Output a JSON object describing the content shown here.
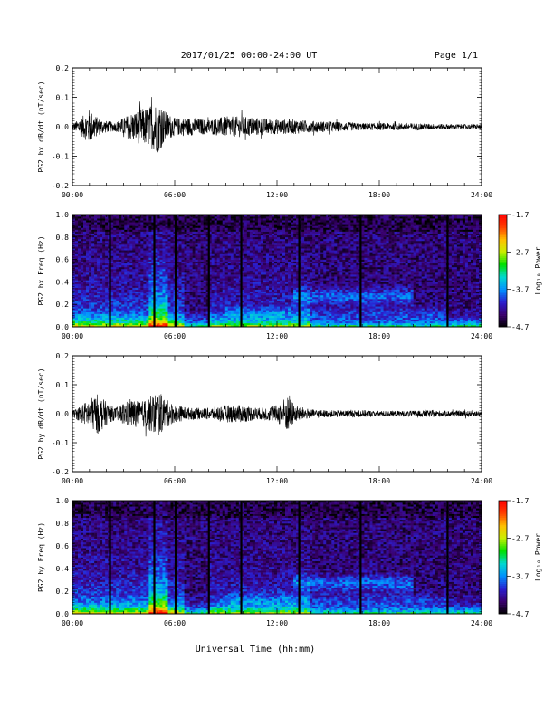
{
  "header": {
    "title": "2017/01/25  00:00-24:00 UT",
    "page": "Page 1/1"
  },
  "footer": {
    "xlabel": "Universal Time (hh:mm)"
  },
  "colorbar": {
    "label": "Log₁₀ Power",
    "ticks": [
      "-1.7",
      "-2.7",
      "-3.7",
      "-4.7"
    ],
    "colors": [
      "#000000",
      "#3a0070",
      "#2a1fd0",
      "#0090ff",
      "#00d8d0",
      "#00e000",
      "#c8f000",
      "#ffc000",
      "#ff4000",
      "#ff0000"
    ]
  },
  "chart_data": [
    {
      "type": "line",
      "ylabel": "PG2 bx dB/dt (nT/sec)",
      "xlim": [
        0,
        24
      ],
      "ylim": [
        -0.2,
        0.2
      ],
      "x_ticks": [
        "00:00",
        "06:00",
        "12:00",
        "18:00",
        "24:00"
      ],
      "y_ticks": [
        "-0.2",
        "-0.1",
        "0.0",
        "0.1",
        "0.2"
      ],
      "series": [
        {
          "envelope": [
            [
              0,
              0.01
            ],
            [
              0.5,
              0.03
            ],
            [
              1,
              0.06
            ],
            [
              1.5,
              0.03
            ],
            [
              2,
              0.02
            ],
            [
              2.5,
              0.015
            ],
            [
              3,
              0.03
            ],
            [
              3.5,
              0.05
            ],
            [
              4,
              0.06
            ],
            [
              4.5,
              0.07
            ],
            [
              5,
              0.09
            ],
            [
              5.5,
              0.05
            ],
            [
              6,
              0.03
            ],
            [
              7,
              0.03
            ],
            [
              8,
              0.025
            ],
            [
              9,
              0.035
            ],
            [
              10,
              0.035
            ],
            [
              11,
              0.03
            ],
            [
              12,
              0.025
            ],
            [
              13,
              0.025
            ],
            [
              14,
              0.02
            ],
            [
              15,
              0.018
            ],
            [
              16,
              0.015
            ],
            [
              17,
              0.012
            ],
            [
              18,
              0.012
            ],
            [
              19,
              0.012
            ],
            [
              20,
              0.012
            ],
            [
              21,
              0.01
            ],
            [
              22,
              0.009
            ],
            [
              24,
              0.008
            ]
          ]
        }
      ]
    },
    {
      "type": "heatmap",
      "ylabel": "PG2 bx Freq (Hz)",
      "xlim": [
        0,
        24
      ],
      "ylim": [
        0,
        1
      ],
      "zlim": [
        -4.7,
        -1.7
      ],
      "x_ticks": [
        "00:00",
        "06:00",
        "12:00",
        "18:00",
        "24:00"
      ],
      "y_ticks": [
        "0.0",
        "0.2",
        "0.4",
        "0.6",
        "0.8",
        "1.0"
      ],
      "gaps": [
        2.2,
        4.8,
        6.05,
        8.0,
        9.9,
        13.3,
        16.9,
        22.0
      ]
    },
    {
      "type": "line",
      "ylabel": "PG2 by dB/dt (nT/sec)",
      "xlim": [
        0,
        24
      ],
      "ylim": [
        -0.2,
        0.2
      ],
      "x_ticks": [
        "00:00",
        "06:00",
        "12:00",
        "18:00",
        "24:00"
      ],
      "y_ticks": [
        "-0.2",
        "-0.1",
        "0.0",
        "0.1",
        "0.2"
      ],
      "series": [
        {
          "envelope": [
            [
              0,
              0.01
            ],
            [
              0.5,
              0.03
            ],
            [
              1,
              0.05
            ],
            [
              1.5,
              0.07
            ],
            [
              2,
              0.04
            ],
            [
              2.5,
              0.02
            ],
            [
              3,
              0.04
            ],
            [
              3.5,
              0.05
            ],
            [
              4,
              0.04
            ],
            [
              4.5,
              0.06
            ],
            [
              5,
              0.08
            ],
            [
              5.5,
              0.05
            ],
            [
              6,
              0.03
            ],
            [
              7,
              0.02
            ],
            [
              8,
              0.02
            ],
            [
              9,
              0.03
            ],
            [
              10,
              0.03
            ],
            [
              11,
              0.02
            ],
            [
              12,
              0.03
            ],
            [
              12.7,
              0.07
            ],
            [
              13,
              0.03
            ],
            [
              14,
              0.015
            ],
            [
              15,
              0.012
            ],
            [
              16,
              0.012
            ],
            [
              17,
              0.012
            ],
            [
              18,
              0.01
            ],
            [
              19,
              0.01
            ],
            [
              20,
              0.01
            ],
            [
              21,
              0.012
            ],
            [
              22,
              0.01
            ],
            [
              24,
              0.01
            ]
          ]
        }
      ]
    },
    {
      "type": "heatmap",
      "ylabel": "PG2 by Freq (Hz)",
      "xlim": [
        0,
        24
      ],
      "ylim": [
        0,
        1
      ],
      "zlim": [
        -4.7,
        -1.7
      ],
      "x_ticks": [
        "00:00",
        "06:00",
        "12:00",
        "18:00",
        "24:00"
      ],
      "y_ticks": [
        "0.0",
        "0.2",
        "0.4",
        "0.6",
        "0.8",
        "1.0"
      ],
      "gaps": [
        2.2,
        4.8,
        6.05,
        8.0,
        9.9,
        13.3,
        16.9,
        22.0
      ]
    }
  ]
}
